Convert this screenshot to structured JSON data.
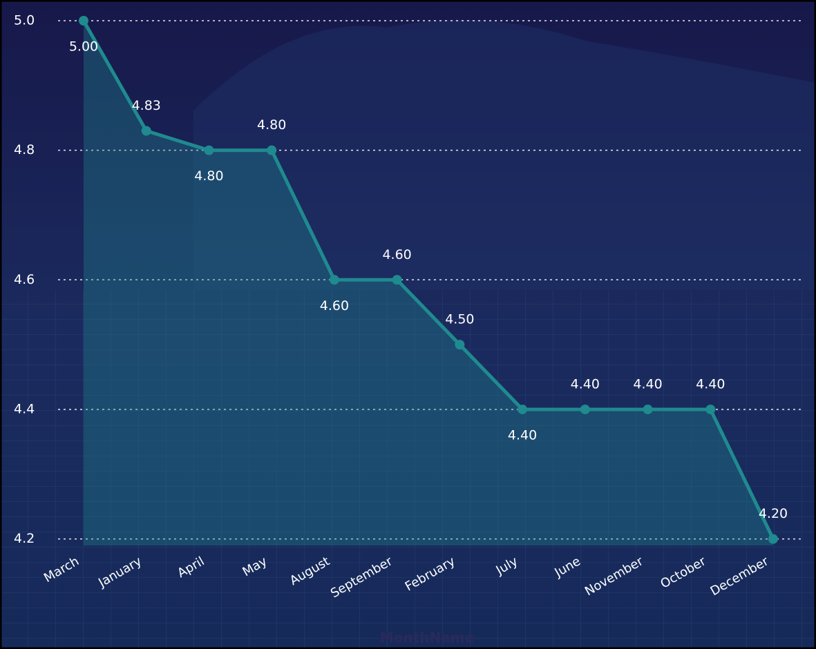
{
  "chart_data": {
    "type": "area",
    "x_label": "MonthName",
    "categories": [
      "March",
      "January",
      "April",
      "May",
      "August",
      "September",
      "February",
      "July",
      "June",
      "November",
      "October",
      "December"
    ],
    "values": [
      5.0,
      4.83,
      4.8,
      4.8,
      4.6,
      4.6,
      4.5,
      4.4,
      4.4,
      4.4,
      4.4,
      4.2
    ],
    "value_labels": [
      "5.00",
      "4.83",
      "4.80",
      "4.80",
      "4.60",
      "4.60",
      "4.50",
      "4.40",
      "4.40",
      "4.40",
      "4.40",
      "4.20"
    ],
    "color": "#1f8a8f",
    "ylim": [
      4.19,
      5.0
    ],
    "yticks": [
      {
        "value": 5.0,
        "label": "5.0"
      },
      4.8,
      4.6,
      4.4,
      4.2
    ],
    "grid": true
  }
}
